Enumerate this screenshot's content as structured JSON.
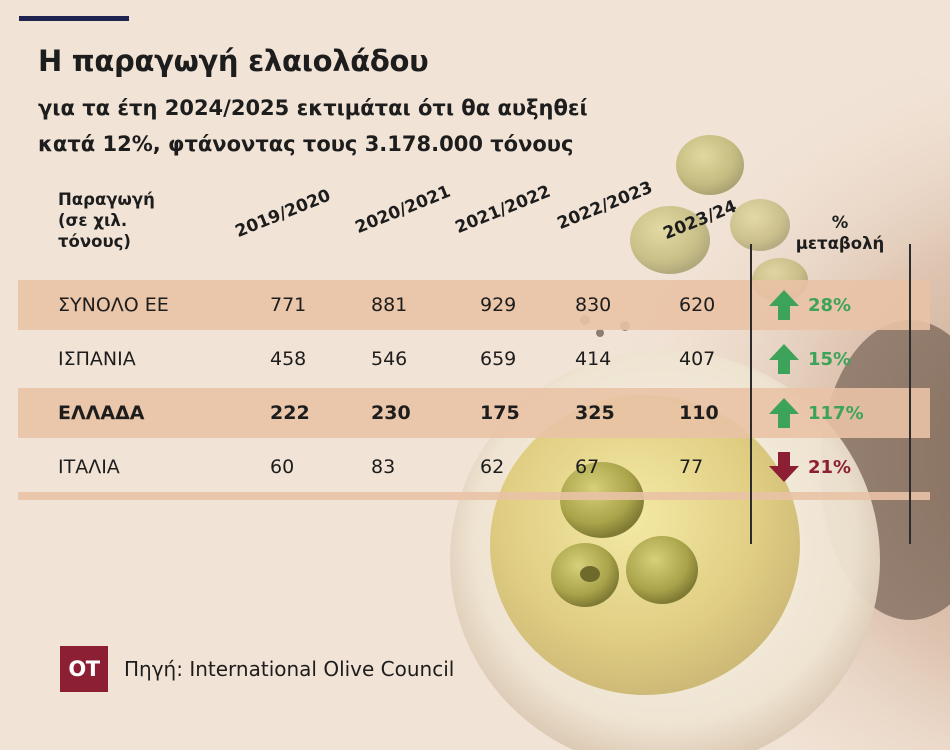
{
  "title": "Η παραγωγή ελαιολάδου",
  "subtitle_line1": "για τα έτη 2024/2025 εκτιμάται ότι θα αυξηθεί",
  "subtitle_line2": "κατά 12%, φτάνοντας τους 3.178.000 τόνους",
  "table": {
    "unit_label": [
      "Παραγωγή",
      "(σε χιλ.",
      "τόνους)"
    ],
    "change_header": [
      "%",
      "μεταβολή"
    ],
    "years": [
      "2019/2020",
      "2020/2021",
      "2021/2022",
      "2022/2023",
      "2023/24"
    ],
    "rows": [
      {
        "country": "ΣΥΝΟΛΟ ΕΕ",
        "values": [
          "771",
          "881",
          "929",
          "830",
          "620"
        ],
        "change": "28%",
        "direction": "up",
        "bold": false,
        "shaded": true
      },
      {
        "country": "ΙΣΠΑΝΙΑ",
        "values": [
          "458",
          "546",
          "659",
          "414",
          "407"
        ],
        "change": "15%",
        "direction": "up",
        "bold": false,
        "shaded": false
      },
      {
        "country": "ΕΛΛΑΔΑ",
        "values": [
          "222",
          "230",
          "175",
          "325",
          "110"
        ],
        "change": "117%",
        "direction": "up",
        "bold": true,
        "shaded": true
      },
      {
        "country": "ΙΤΑΛΙΑ",
        "values": [
          "60",
          "83",
          "62",
          "67",
          "77"
        ],
        "change": "21%",
        "direction": "down",
        "bold": false,
        "shaded": false
      }
    ]
  },
  "chart_data": {
    "type": "table",
    "title": "Η παραγωγή ελαιολάδου",
    "subtitle": "για τα έτη 2024/2025 εκτιμάται ότι θα αυξηθεί κατά 12%, φτάνοντας τους 3.178.000 τόνους",
    "unit": "Παραγωγή (σε χιλ. τόνους)",
    "columns": [
      "2019/2020",
      "2020/2021",
      "2021/2022",
      "2022/2023",
      "2023/24",
      "% μεταβολή"
    ],
    "categories": [
      "ΣΥΝΟΛΟ ΕΕ",
      "ΙΣΠΑΝΙΑ",
      "ΕΛΛΑΔΑ",
      "ΙΤΑΛΙΑ"
    ],
    "series": [
      {
        "name": "2019/2020",
        "values": [
          771,
          458,
          222,
          60
        ]
      },
      {
        "name": "2020/2021",
        "values": [
          881,
          546,
          230,
          83
        ]
      },
      {
        "name": "2021/2022",
        "values": [
          929,
          659,
          175,
          62
        ]
      },
      {
        "name": "2022/2023",
        "values": [
          830,
          414,
          325,
          67
        ]
      },
      {
        "name": "2023/24",
        "values": [
          620,
          407,
          110,
          77
        ]
      }
    ],
    "change_percent": [
      28,
      15,
      117,
      -21
    ]
  },
  "colors": {
    "up": "#3ea35a",
    "down": "#8c1f33",
    "accent_line": "#1f2350",
    "logo_bg": "#8c1f33",
    "band": "#e9c2a5"
  },
  "footer": {
    "logo_text": "OT",
    "source": "Πηγή: International Olive Council"
  }
}
